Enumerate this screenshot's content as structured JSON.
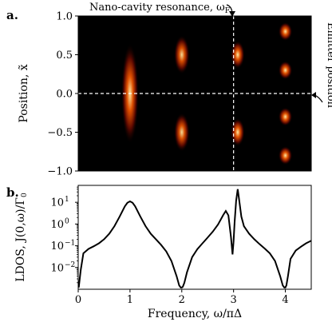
{
  "figure": {
    "panel_a_label": "a.",
    "panel_b_label": "b.",
    "annotation_top": "Nano-cavity resonance, ω",
    "annotation_top_sub": "F",
    "annotation_right": "Emitter position"
  },
  "colors": {
    "heatmap_background": "#000000",
    "heatmap_high": "#ffe8a0",
    "heatmap_mid": "#e05000",
    "heatmap_low": "#5a0800",
    "marker_lines": "#ffffff",
    "curve": "#000000"
  },
  "chart_data": [
    {
      "type": "heatmap",
      "panel": "a",
      "xlim": [
        0,
        4.5
      ],
      "ylim": [
        -1.0,
        1.0
      ],
      "ylabel": "Position, x̃",
      "yticks": [
        "−1.0",
        "−0.5",
        "0.0",
        "0.5",
        "1.0"
      ],
      "ytick_values": [
        -1.0,
        -0.5,
        0.0,
        0.5,
        1.0
      ],
      "reference_lines": {
        "vertical_x": 3.0,
        "horizontal_y": 0.0,
        "style": "dashed white"
      },
      "bright_features": [
        {
          "x": 1.0,
          "y": 0.0,
          "half_width": 0.65,
          "intensity": 1.0
        },
        {
          "x": 2.0,
          "y": 0.5,
          "half_width": 0.25,
          "intensity": 0.95
        },
        {
          "x": 2.0,
          "y": -0.5,
          "half_width": 0.25,
          "intensity": 0.95
        },
        {
          "x": 3.08,
          "y": 0.5,
          "half_width": 0.18,
          "intensity": 1.0
        },
        {
          "x": 3.08,
          "y": -0.5,
          "half_width": 0.18,
          "intensity": 1.0
        },
        {
          "x": 4.0,
          "y": 0.8,
          "half_width": 0.12,
          "intensity": 1.0
        },
        {
          "x": 4.0,
          "y": 0.3,
          "half_width": 0.12,
          "intensity": 1.0
        },
        {
          "x": 4.0,
          "y": -0.3,
          "half_width": 0.12,
          "intensity": 1.0
        },
        {
          "x": 4.0,
          "y": -0.8,
          "half_width": 0.12,
          "intensity": 1.0
        }
      ]
    },
    {
      "type": "line",
      "panel": "b",
      "xlabel": "Frequency, ω/πΔ",
      "ylabel": "LDOS, J(0,ω)/Γ",
      "ylabel_sub": "0",
      "xlim": [
        0,
        4.5
      ],
      "ylim": [
        0.001,
        60
      ],
      "yscale": "log",
      "xticks": [
        "0",
        "1",
        "2",
        "3",
        "4"
      ],
      "xtick_values": [
        0,
        1,
        2,
        3,
        4
      ],
      "yticks": [
        "10",
        "10",
        "10",
        "10"
      ],
      "ytick_exponents": [
        "1",
        "0",
        "−1",
        "−2"
      ],
      "ytick_values": [
        10,
        1,
        0.1,
        0.01
      ],
      "series": [
        {
          "x": [
            0.01,
            0.05,
            0.1,
            0.2,
            0.3,
            0.4,
            0.5,
            0.6,
            0.7,
            0.8,
            0.9,
            0.95,
            1.0,
            1.05,
            1.1,
            1.2,
            1.3,
            1.4,
            1.5,
            1.6,
            1.7,
            1.8,
            1.9,
            1.95,
            1.98,
            2.0,
            2.02,
            2.05,
            2.1,
            2.2,
            2.3,
            2.4,
            2.5,
            2.6,
            2.7,
            2.8,
            2.85,
            2.9,
            2.95,
            2.98,
            3.0,
            3.02,
            3.05,
            3.08,
            3.1,
            3.15,
            3.2,
            3.3,
            3.4,
            3.5,
            3.6,
            3.7,
            3.8,
            3.9,
            3.95,
            3.98,
            4.0,
            4.02,
            4.05,
            4.1,
            4.2,
            4.3,
            4.4,
            4.5
          ],
          "y": [
            0.0012,
            0.008,
            0.045,
            0.072,
            0.095,
            0.13,
            0.2,
            0.36,
            0.8,
            2.2,
            6.5,
            9.5,
            11,
            9.5,
            6.5,
            2.2,
            0.8,
            0.36,
            0.2,
            0.11,
            0.055,
            0.02,
            0.004,
            0.0015,
            0.0012,
            0.0012,
            0.0013,
            0.002,
            0.006,
            0.03,
            0.07,
            0.13,
            0.24,
            0.45,
            0.95,
            2.6,
            4.0,
            2.5,
            0.25,
            0.04,
            0.16,
            1.2,
            12,
            40,
            18,
            2.2,
            0.8,
            0.36,
            0.2,
            0.12,
            0.075,
            0.045,
            0.02,
            0.004,
            0.0015,
            0.0012,
            0.0012,
            0.0015,
            0.004,
            0.025,
            0.06,
            0.09,
            0.13,
            0.17
          ]
        }
      ]
    }
  ]
}
